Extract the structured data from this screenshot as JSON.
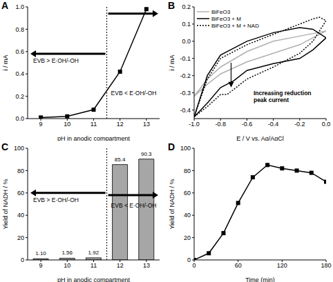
{
  "chart_data": [
    {
      "panel": "A",
      "type": "line",
      "x": [
        9,
        10,
        11,
        12,
        13
      ],
      "values": [
        0.01,
        0.02,
        0.08,
        0.42,
        0.98
      ],
      "color": "#000000",
      "marker": "square",
      "x_label": "pH in anodic compartment",
      "y_label": "i / mA",
      "xlim": [
        8.5,
        13.5
      ],
      "xticks": [
        9,
        10,
        11,
        12,
        13
      ],
      "ylim": [
        0,
        1
      ],
      "yticks": [
        {
          "value": 0,
          "label": "0.0"
        },
        0.2,
        0.4,
        0.6,
        0.8,
        {
          "value": 1,
          "label": "1.0"
        }
      ],
      "boundary": 11.5,
      "annotations": [
        "EVB > E·OH/-OH",
        "EVB < E·OH/-OH"
      ]
    },
    {
      "panel": "B",
      "type": "line",
      "x_label": "E / V vs. Ag/AgCl",
      "y_label": "i / mA",
      "xlim": [
        -1,
        0
      ],
      "xticks": [
        {
          "value": -1,
          "label": "-1.0"
        },
        -0.8,
        -0.6,
        -0.4,
        -0.2,
        {
          "value": 0,
          "label": "0.0"
        }
      ],
      "ylim": [
        -0.45,
        0.2
      ],
      "yticks": [
        0.2,
        0.1,
        {
          "value": 0,
          "label": "0.0"
        },
        -0.1,
        -0.2,
        -0.3,
        -0.4
      ],
      "legend": "upper left",
      "annotations": [
        "Increasing reduction peak current"
      ],
      "series": [
        {
          "name": "BiFeO3",
          "color": "#b0b0b0",
          "line_style": "solid",
          "x": [
            -1.0,
            -0.9,
            -0.8,
            -0.6,
            -0.4,
            -0.2,
            0.0,
            -0.2,
            -0.4,
            -0.6,
            -0.8,
            -0.9,
            -1.0
          ],
          "values": [
            -0.32,
            -0.22,
            -0.15,
            -0.06,
            0.0,
            0.03,
            0.06,
            -0.02,
            -0.07,
            -0.12,
            -0.19,
            -0.25,
            -0.32
          ]
        },
        {
          "name": "BiFeO3 + M",
          "color": "#000000",
          "line_style": "solid",
          "x": [
            -1.0,
            -0.9,
            -0.8,
            -0.6,
            -0.4,
            -0.2,
            -0.1,
            0.0,
            -0.1,
            -0.2,
            -0.4,
            -0.6,
            -0.7,
            -0.75,
            -0.8,
            -0.9,
            -1.0
          ],
          "values": [
            -0.44,
            -0.2,
            -0.08,
            0.0,
            0.05,
            0.08,
            0.07,
            0.02,
            -0.05,
            -0.1,
            -0.13,
            -0.17,
            -0.23,
            -0.25,
            -0.27,
            -0.36,
            -0.44
          ]
        },
        {
          "name": "BiFeO3 + M + NAD",
          "color": "#000000",
          "line_style": "dotted",
          "x": [
            -1.0,
            -0.9,
            -0.8,
            -0.6,
            -0.4,
            -0.2,
            -0.1,
            -0.05,
            0.0,
            -0.1,
            -0.2,
            -0.4,
            -0.6,
            -0.7,
            -0.75,
            -0.8,
            -0.9,
            -1.0
          ],
          "values": [
            -0.44,
            -0.22,
            -0.1,
            -0.02,
            0.04,
            0.1,
            0.13,
            0.14,
            0.12,
            0.0,
            -0.07,
            -0.15,
            -0.22,
            -0.28,
            -0.31,
            -0.31,
            -0.38,
            -0.44
          ]
        }
      ]
    },
    {
      "panel": "C",
      "type": "bar",
      "x": [
        9,
        10,
        11,
        12,
        13
      ],
      "values": [
        1.1,
        1.56,
        1.92,
        85.4,
        90.3
      ],
      "value_labels": [
        "1.10",
        "1.56",
        "1.92",
        "85.4",
        "90.3"
      ],
      "data_labels": true,
      "color": "#a6a6a6",
      "x_label": "pH in anodic compartment",
      "y_label": "Yield of NADH / %",
      "xlim": [
        8.5,
        13.5
      ],
      "xticks": [
        9,
        10,
        11,
        12,
        13
      ],
      "ylim": [
        0,
        100
      ],
      "yticks": [
        0,
        20,
        40,
        60,
        80,
        100
      ],
      "boundary": 11.5,
      "annotations": [
        "EVB > E·OH/-OH",
        "EVB < E·OH/-OH"
      ]
    },
    {
      "panel": "D",
      "type": "line",
      "x": [
        0,
        20,
        40,
        60,
        80,
        100,
        120,
        140,
        160,
        180
      ],
      "values": [
        0,
        6,
        24,
        51,
        74,
        85,
        82,
        80,
        78,
        70
      ],
      "color": "#000000",
      "marker": "square",
      "x_label": "Time (min)",
      "y_label": "Yield of NADH / %",
      "xlim": [
        0,
        180
      ],
      "xticks": [
        0,
        60,
        120,
        180
      ],
      "ylim": [
        0,
        100
      ],
      "yticks": [
        0,
        20,
        40,
        60,
        80,
        100
      ]
    }
  ]
}
